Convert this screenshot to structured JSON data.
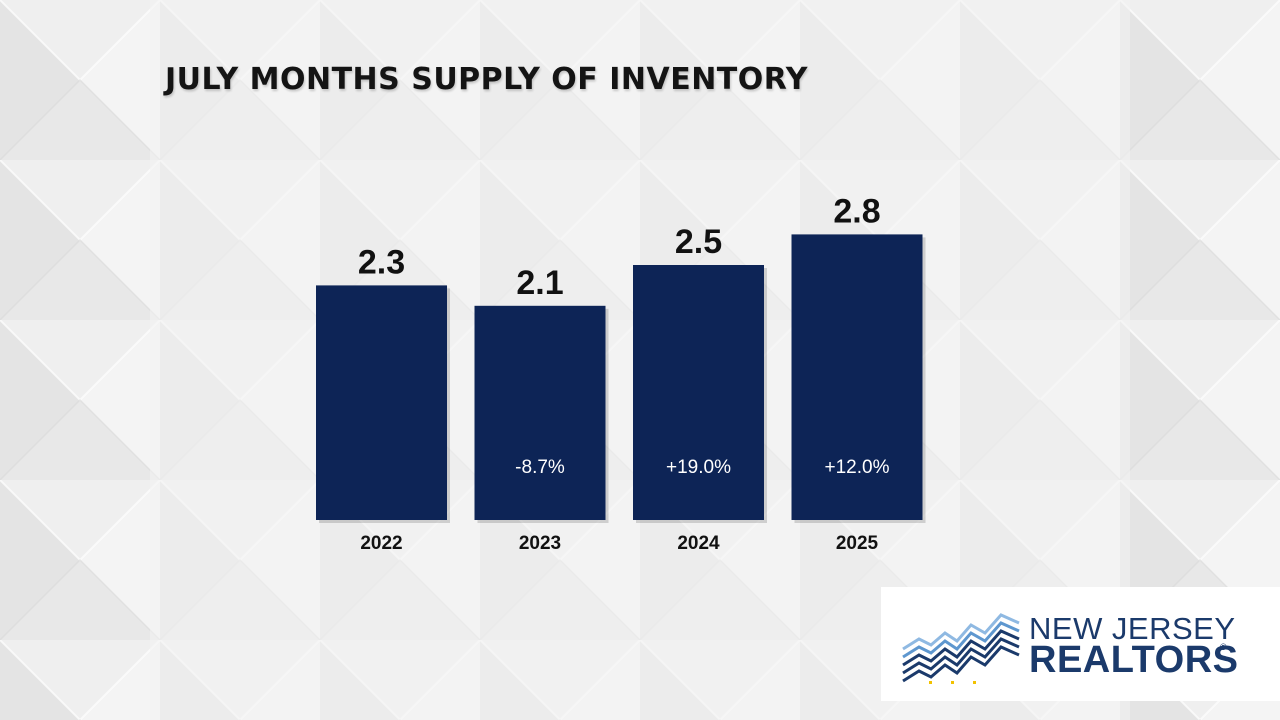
{
  "chart_data": {
    "type": "bar",
    "title": "JULY MONTHS SUPPLY OF INVENTORY",
    "categories": [
      "2022",
      "2023",
      "2024",
      "2025"
    ],
    "values": [
      2.3,
      2.1,
      2.5,
      2.8
    ],
    "value_labels": [
      "2.3",
      "2.1",
      "2.5",
      "2.8"
    ],
    "change_labels": [
      "",
      "-8.7%",
      "+19.0%",
      "+12.0%"
    ],
    "bar_color": "#0d2456",
    "xlabel": "",
    "ylabel": ""
  },
  "logo": {
    "line1": "NEW JERSEY",
    "line2": "REALTORS",
    "registered": "®",
    "color": "#1b3a6b"
  }
}
